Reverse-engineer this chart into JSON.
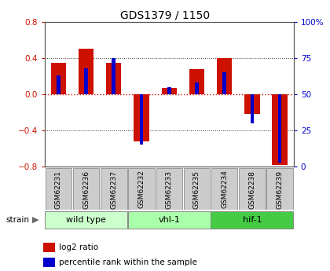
{
  "title": "GDS1379 / 1150",
  "samples": [
    "GSM62231",
    "GSM62236",
    "GSM62237",
    "GSM62232",
    "GSM62233",
    "GSM62235",
    "GSM62234",
    "GSM62238",
    "GSM62239"
  ],
  "log2_ratio": [
    0.35,
    0.5,
    0.35,
    -0.52,
    0.07,
    0.28,
    0.4,
    -0.22,
    -0.78
  ],
  "percentile": [
    63,
    68,
    75,
    15,
    55,
    58,
    65,
    30,
    3
  ],
  "groups": [
    {
      "label": "wild type",
      "start": 0,
      "end": 3,
      "color": "#ccffcc"
    },
    {
      "label": "vhl-1",
      "start": 3,
      "end": 6,
      "color": "#aaffaa"
    },
    {
      "label": "hif-1",
      "start": 6,
      "end": 9,
      "color": "#44cc44"
    }
  ],
  "ylim": [
    -0.8,
    0.8
  ],
  "yticks_left": [
    -0.8,
    -0.4,
    0.0,
    0.4,
    0.8
  ],
  "yticks_right": [
    0,
    25,
    50,
    75,
    100
  ],
  "bar_color_red": "#cc1100",
  "bar_color_blue": "#0000cc",
  "hline_zero_color": "#cc1100",
  "dotline_color": "#333333",
  "legend_red_label": "log2 ratio",
  "legend_blue_label": "percentile rank within the sample",
  "sample_box_color": "#cccccc",
  "sample_box_edge": "#999999",
  "group_edge_color": "#888888"
}
